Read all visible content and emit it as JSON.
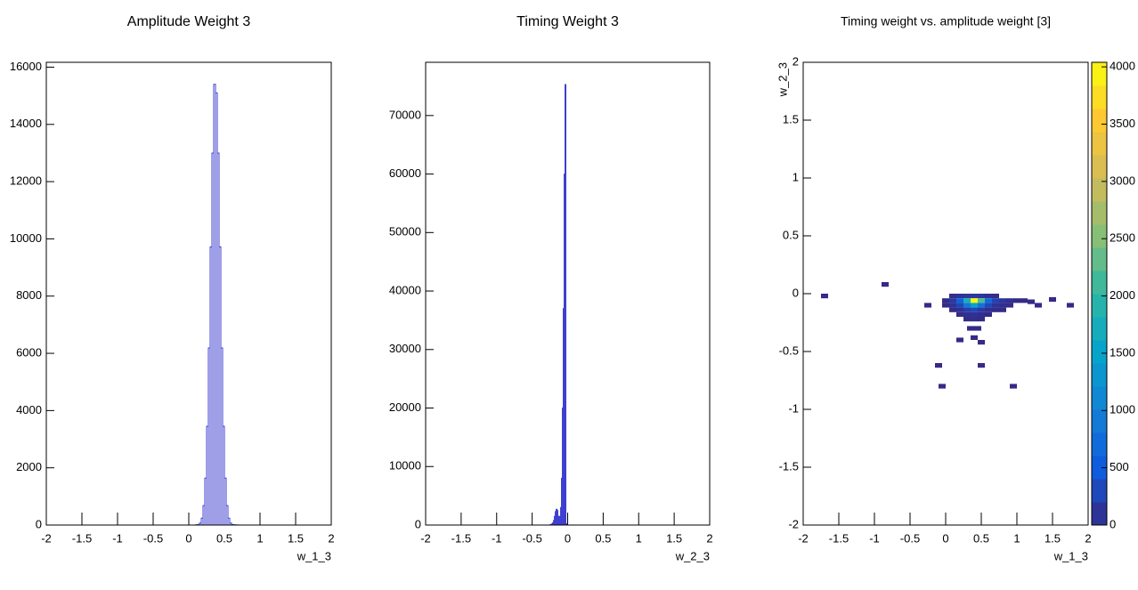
{
  "chart_data": [
    {
      "type": "histogram",
      "title": "Amplitude Weight 3",
      "x_label": "w_1_3",
      "color": "#3f3fd0",
      "bins": [
        0.1,
        0.125,
        0.15,
        0.175,
        0.2,
        0.225,
        0.25,
        0.275,
        0.3,
        0.325,
        0.35,
        0.375,
        0.4,
        0.425,
        0.45,
        0.475,
        0.5,
        0.525,
        0.55,
        0.575,
        0.6,
        0.625,
        0.65,
        0.675,
        0.7
      ],
      "values": [
        10,
        20,
        70,
        240,
        680,
        1640,
        3450,
        6190,
        9720,
        13000,
        15400,
        15100,
        13000,
        9720,
        6190,
        3450,
        1640,
        680,
        240,
        70,
        20,
        10,
        5,
        2
      ],
      "xlim": [
        -2,
        2
      ],
      "xticks": [
        -2,
        -1.5,
        -1,
        -0.5,
        0,
        0.5,
        1,
        1.5,
        2
      ],
      "ylim": [
        0,
        16170
      ],
      "yticks": [
        0,
        2000,
        4000,
        6000,
        8000,
        10000,
        12000,
        14000,
        16000
      ]
    },
    {
      "type": "histogram",
      "title": "Timing Weight 3",
      "x_label": "w_2_3",
      "color": "#3f3fd0",
      "bins": [
        -0.25,
        -0.2375,
        -0.225,
        -0.2125,
        -0.2,
        -0.1875,
        -0.175,
        -0.1625,
        -0.15,
        -0.1375,
        -0.125,
        -0.1125,
        -0.1,
        -0.0875,
        -0.075,
        -0.0625,
        -0.05,
        -0.0375,
        -0.025,
        -0.0125,
        0
      ],
      "values": [
        50,
        100,
        200,
        400,
        800,
        1500,
        2300,
        2700,
        2500,
        1500,
        1200,
        1500,
        3000,
        8000,
        20000,
        37000,
        60000,
        75300,
        200,
        20
      ],
      "xlim": [
        -2,
        2
      ],
      "xticks": [
        -2,
        -1.5,
        -1,
        -0.5,
        0,
        0.5,
        1,
        1.5,
        2
      ],
      "ylim": [
        0,
        79100
      ],
      "yticks": [
        0,
        10000,
        20000,
        30000,
        40000,
        50000,
        60000,
        70000
      ]
    },
    {
      "type": "heatmap",
      "title": "Timing weight vs. amplitude weight [3]",
      "x_label": "w_1_3",
      "y_label": "w_2_3",
      "x": [
        0.1,
        0.2,
        0.3,
        0.4,
        0.5,
        0.6,
        0.7,
        0.0,
        0.1,
        0.2,
        0.3,
        0.4,
        0.5,
        0.6,
        0.7,
        0.8,
        0.9,
        1.0,
        1.1,
        0.0,
        0.1,
        0.2,
        0.3,
        0.4,
        0.5,
        0.6,
        0.7,
        0.8,
        0.9,
        0.1,
        0.2,
        0.3,
        0.4,
        0.5,
        0.6,
        0.7,
        0.2,
        0.3,
        0.4,
        0.5,
        0.6,
        0.3,
        0.4,
        0.5,
        0.35,
        0.45,
        0.4,
        0.2,
        0.5,
        -1.7,
        -0.85,
        -0.05,
        0.95,
        1.75,
        0.5,
        -0.1,
        -0.25,
        1.5,
        1.2,
        0.8,
        1.3
      ],
      "y": [
        -0.02,
        -0.02,
        -0.02,
        -0.02,
        -0.02,
        -0.02,
        -0.02,
        -0.06,
        -0.06,
        -0.06,
        -0.06,
        -0.06,
        -0.06,
        -0.06,
        -0.06,
        -0.06,
        -0.06,
        -0.06,
        -0.06,
        -0.1,
        -0.1,
        -0.1,
        -0.1,
        -0.1,
        -0.1,
        -0.1,
        -0.1,
        -0.1,
        -0.1,
        -0.14,
        -0.14,
        -0.14,
        -0.14,
        -0.14,
        -0.14,
        -0.14,
        -0.18,
        -0.18,
        -0.18,
        -0.18,
        -0.18,
        -0.22,
        -0.22,
        -0.22,
        -0.3,
        -0.3,
        -0.38,
        -0.4,
        -0.42,
        -0.02,
        0.08,
        -0.8,
        -0.8,
        -0.1,
        -0.62,
        -0.62,
        -0.1,
        -0.05,
        -0.07,
        -0.14,
        -0.1
      ],
      "values": [
        30,
        80,
        120,
        150,
        120,
        60,
        20,
        20,
        150,
        600,
        1800,
        4000,
        2200,
        700,
        250,
        120,
        50,
        20,
        8,
        10,
        80,
        300,
        900,
        1500,
        800,
        300,
        100,
        40,
        15,
        20,
        60,
        200,
        300,
        150,
        50,
        20,
        15,
        50,
        80,
        40,
        10,
        20,
        30,
        15,
        8,
        10,
        5,
        3,
        3,
        1,
        1,
        1,
        1,
        1,
        1,
        1,
        2,
        3,
        4,
        6,
        3
      ],
      "xlim": [
        -2,
        2
      ],
      "xticks": [
        -2,
        -1.5,
        -1,
        -0.5,
        0,
        0.5,
        1,
        1.5,
        2
      ],
      "ylim": [
        -2,
        2
      ],
      "yticks": [
        -2,
        -1.5,
        -1,
        -0.5,
        0,
        0.5,
        1,
        1.5,
        2
      ],
      "zlim": [
        0,
        4040
      ],
      "zticks": [
        0,
        500,
        1000,
        1500,
        2000,
        2500,
        3000,
        3500,
        4000
      ]
    }
  ]
}
